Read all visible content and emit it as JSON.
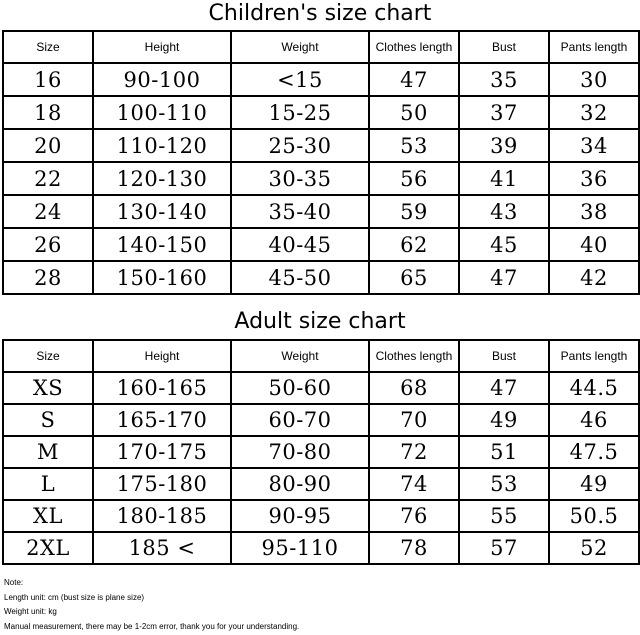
{
  "children": {
    "title": "Children's size chart",
    "headers": [
      "Size",
      "Height",
      "Weight",
      "Clothes length",
      "Bust",
      "Pants length"
    ],
    "rows": [
      [
        "16",
        "90-100",
        "<15",
        "47",
        "35",
        "30"
      ],
      [
        "18",
        "100-110",
        "15-25",
        "50",
        "37",
        "32"
      ],
      [
        "20",
        "110-120",
        "25-30",
        "53",
        "39",
        "34"
      ],
      [
        "22",
        "120-130",
        "30-35",
        "56",
        "41",
        "36"
      ],
      [
        "24",
        "130-140",
        "35-40",
        "59",
        "43",
        "38"
      ],
      [
        "26",
        "140-150",
        "40-45",
        "62",
        "45",
        "40"
      ],
      [
        "28",
        "150-160",
        "45-50",
        "65",
        "47",
        "42"
      ]
    ]
  },
  "adult": {
    "title": "Adult size chart",
    "headers": [
      "Size",
      "Height",
      "Weight",
      "Clothes length",
      "Bust",
      "Pants length"
    ],
    "rows": [
      [
        "XS",
        "160-165",
        "50-60",
        "68",
        "47",
        "44.5"
      ],
      [
        "S",
        "165-170",
        "60-70",
        "70",
        "49",
        "46"
      ],
      [
        "M",
        "170-175",
        "70-80",
        "72",
        "51",
        "47.5"
      ],
      [
        "L",
        "175-180",
        "80-90",
        "74",
        "53",
        "49"
      ],
      [
        "XL",
        "180-185",
        "90-95",
        "76",
        "55",
        "50.5"
      ],
      [
        "2XL",
        "185 <",
        "95-110",
        "78",
        "57",
        "52"
      ]
    ]
  },
  "notes": [
    "Note:",
    "Length unit: cm (bust size is plane size)",
    "Weight unit: kg",
    "Manual measurement, there may be 1-2cm error, thank you for your understanding."
  ]
}
